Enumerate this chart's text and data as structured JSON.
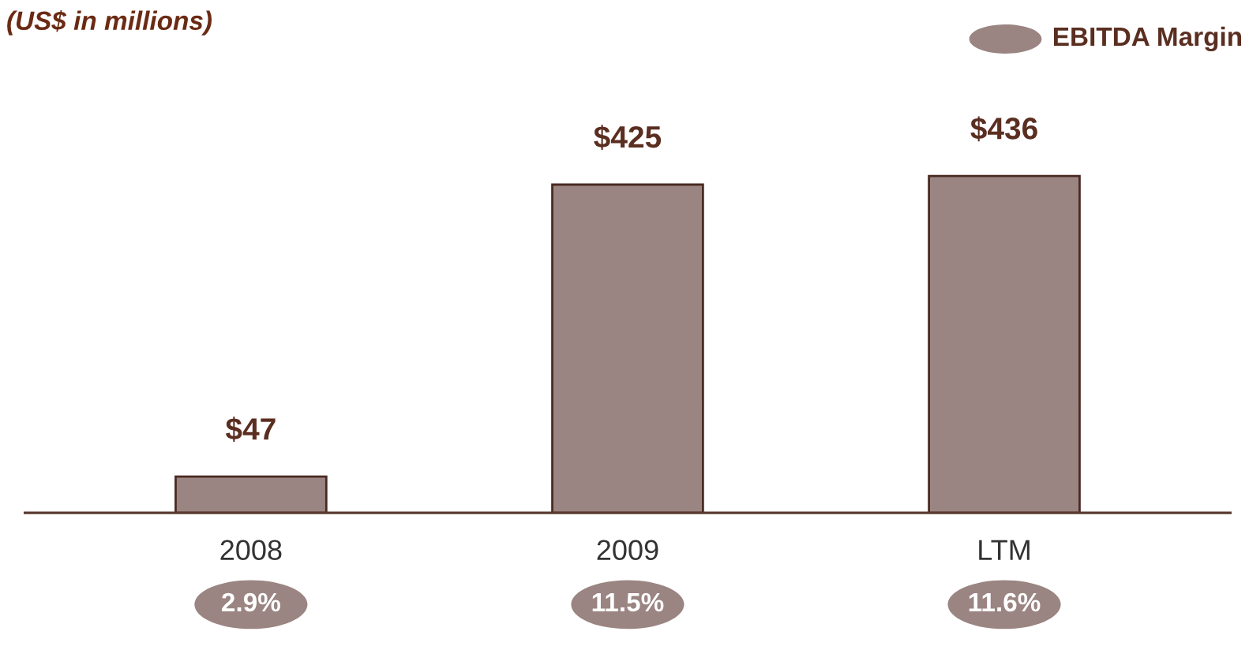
{
  "chart_data": {
    "type": "bar",
    "title": "(US$ in millions)",
    "categories": [
      "2008",
      "2009",
      "LTM"
    ],
    "series": [
      {
        "color": "#9a8582",
        "values": [
          47,
          425,
          436
        ],
        "value_labels": [
          "$47",
          "$425",
          "$436"
        ]
      }
    ],
    "annotations": [
      "EBITDA Margin",
      "2.9%",
      "11.5%",
      "11.6%"
    ],
    "tick_labels": "x"
  }
}
